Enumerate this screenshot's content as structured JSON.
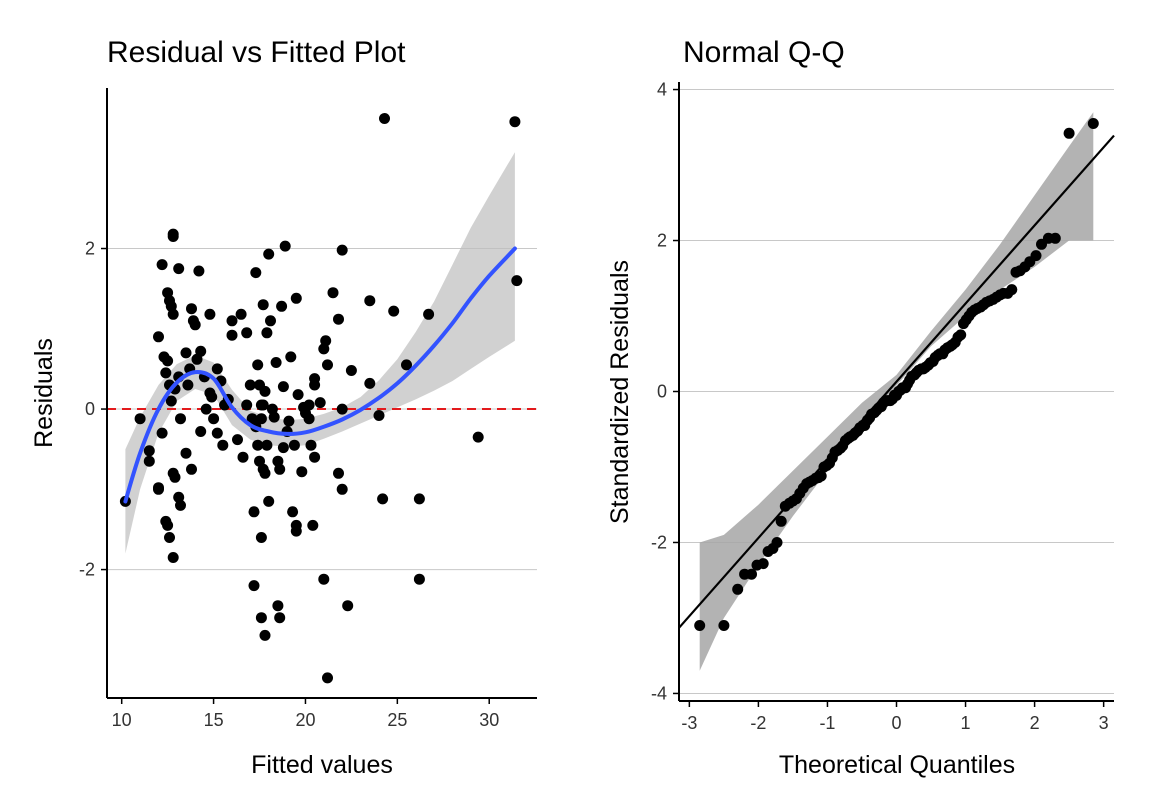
{
  "chart_data": [
    {
      "type": "scatter",
      "title": "Residual vs Fitted Plot",
      "xlabel": "Fitted values",
      "ylabel": "Residuals",
      "xlim": [
        9.2,
        32.6
      ],
      "ylim": [
        -3.6,
        4.0
      ],
      "xticks": [
        "10",
        "15",
        "20",
        "25",
        "30"
      ],
      "yticks": [
        "-2",
        "0",
        "2"
      ],
      "grid": "horizontal major lines",
      "reference_line": {
        "y": 0,
        "color": "#e31a1c",
        "style": "dashed"
      },
      "points_color": "#000000",
      "smooth_color": "#3353ff",
      "smooth": {
        "x": [
          10.2,
          11.0,
          12.0,
          13.0,
          14.0,
          15.0,
          16.0,
          17.0,
          18.0,
          19.0,
          20.0,
          21.0,
          22.0,
          23.0,
          24.0,
          25.0,
          26.0,
          27.0,
          28.0,
          29.0,
          30.0,
          31.4
        ],
        "y": [
          -1.15,
          -0.55,
          0.0,
          0.33,
          0.46,
          0.38,
          0.02,
          -0.2,
          -0.28,
          -0.31,
          -0.29,
          -0.22,
          -0.13,
          -0.01,
          0.14,
          0.32,
          0.54,
          0.79,
          1.07,
          1.38,
          1.66,
          2.0
        ],
        "band_lower": [
          -1.8,
          -1.0,
          -0.3,
          0.1,
          0.25,
          0.18,
          -0.2,
          -0.38,
          -0.45,
          -0.47,
          -0.45,
          -0.37,
          -0.28,
          -0.18,
          -0.08,
          0.02,
          0.12,
          0.23,
          0.35,
          0.5,
          0.65,
          0.85
        ],
        "band_upper": [
          -0.5,
          -0.1,
          0.3,
          0.56,
          0.67,
          0.58,
          0.24,
          -0.02,
          -0.1,
          -0.14,
          -0.12,
          -0.06,
          0.02,
          0.15,
          0.36,
          0.62,
          0.96,
          1.34,
          1.8,
          2.26,
          2.66,
          3.2
        ]
      },
      "points": [
        [
          10.2,
          -1.15
        ],
        [
          11.0,
          -0.12
        ],
        [
          11.5,
          -0.52
        ],
        [
          11.5,
          -0.65
        ],
        [
          12.0,
          0.9
        ],
        [
          12.0,
          -0.98
        ],
        [
          12.0,
          -1.0
        ],
        [
          12.2,
          1.8
        ],
        [
          12.2,
          -0.3
        ],
        [
          12.3,
          0.65
        ],
        [
          12.4,
          0.45
        ],
        [
          12.4,
          -1.4
        ],
        [
          12.5,
          1.45
        ],
        [
          12.5,
          0.6
        ],
        [
          12.5,
          -1.45
        ],
        [
          12.6,
          1.35
        ],
        [
          12.6,
          0.3
        ],
        [
          12.6,
          -1.6
        ],
        [
          12.7,
          1.28
        ],
        [
          12.7,
          0.1
        ],
        [
          12.8,
          2.18
        ],
        [
          12.8,
          2.15
        ],
        [
          12.8,
          1.18
        ],
        [
          12.8,
          -0.8
        ],
        [
          12.8,
          -1.85
        ],
        [
          12.9,
          0.25
        ],
        [
          12.9,
          -0.85
        ],
        [
          13.1,
          1.75
        ],
        [
          13.1,
          0.4
        ],
        [
          13.1,
          -1.1
        ],
        [
          13.2,
          -1.2
        ],
        [
          13.2,
          -0.12
        ],
        [
          13.5,
          0.7
        ],
        [
          13.5,
          -0.55
        ],
        [
          13.6,
          0.3
        ],
        [
          13.7,
          0.5
        ],
        [
          13.8,
          1.25
        ],
        [
          13.8,
          -0.75
        ],
        [
          13.9,
          1.1
        ],
        [
          14.0,
          1.05
        ],
        [
          14.1,
          0.62
        ],
        [
          14.2,
          1.72
        ],
        [
          14.3,
          0.72
        ],
        [
          14.3,
          -0.28
        ],
        [
          14.5,
          0.4
        ],
        [
          14.6,
          0.0
        ],
        [
          14.8,
          1.18
        ],
        [
          14.8,
          0.2
        ],
        [
          14.9,
          0.15
        ],
        [
          15.0,
          -0.12
        ],
        [
          15.2,
          0.5
        ],
        [
          15.2,
          -0.3
        ],
        [
          15.4,
          0.35
        ],
        [
          15.5,
          -0.45
        ],
        [
          15.6,
          0.05
        ],
        [
          15.8,
          0.12
        ],
        [
          16.0,
          1.1
        ],
        [
          16.0,
          0.92
        ],
        [
          16.3,
          -0.38
        ],
        [
          16.5,
          1.18
        ],
        [
          16.6,
          -0.6
        ],
        [
          16.8,
          0.05
        ],
        [
          16.8,
          0.95
        ],
        [
          17.0,
          0.3
        ],
        [
          17.1,
          -0.12
        ],
        [
          17.2,
          -2.2
        ],
        [
          17.2,
          -1.28
        ],
        [
          17.3,
          -0.22
        ],
        [
          17.3,
          1.7
        ],
        [
          17.4,
          0.55
        ],
        [
          17.4,
          -0.45
        ],
        [
          17.5,
          0.3
        ],
        [
          17.5,
          -0.65
        ],
        [
          17.6,
          0.05
        ],
        [
          17.6,
          -0.12
        ],
        [
          17.6,
          -1.6
        ],
        [
          17.6,
          -2.6
        ],
        [
          17.7,
          0.05
        ],
        [
          17.7,
          -0.75
        ],
        [
          17.7,
          1.3
        ],
        [
          17.8,
          -0.8
        ],
        [
          17.8,
          -2.82
        ],
        [
          17.8,
          0.22
        ],
        [
          17.9,
          0.95
        ],
        [
          17.9,
          -0.45
        ],
        [
          18.0,
          1.93
        ],
        [
          18.0,
          -1.15
        ],
        [
          18.1,
          1.1
        ],
        [
          18.2,
          0.0
        ],
        [
          18.3,
          -0.1
        ],
        [
          18.4,
          0.58
        ],
        [
          18.5,
          -2.45
        ],
        [
          18.5,
          -0.65
        ],
        [
          18.6,
          -0.75
        ],
        [
          18.6,
          -2.6
        ],
        [
          18.7,
          1.28
        ],
        [
          18.8,
          0.28
        ],
        [
          18.8,
          -0.48
        ],
        [
          18.9,
          2.03
        ],
        [
          19.0,
          -0.28
        ],
        [
          19.1,
          -0.15
        ],
        [
          19.2,
          0.65
        ],
        [
          19.3,
          -1.28
        ],
        [
          19.4,
          -0.45
        ],
        [
          19.5,
          1.38
        ],
        [
          19.5,
          -1.52
        ],
        [
          19.5,
          -1.45
        ],
        [
          19.6,
          0.18
        ],
        [
          19.8,
          -0.78
        ],
        [
          19.9,
          0.02
        ],
        [
          20.0,
          -0.05
        ],
        [
          20.2,
          -0.12
        ],
        [
          20.2,
          0.05
        ],
        [
          20.3,
          -0.45
        ],
        [
          20.4,
          -1.45
        ],
        [
          20.5,
          0.38
        ],
        [
          20.5,
          0.3
        ],
        [
          20.5,
          -0.6
        ],
        [
          20.8,
          0.08
        ],
        [
          21.0,
          -2.12
        ],
        [
          21.0,
          0.75
        ],
        [
          21.1,
          0.85
        ],
        [
          21.2,
          0.55
        ],
        [
          21.2,
          -3.35
        ],
        [
          21.5,
          1.45
        ],
        [
          21.8,
          -0.8
        ],
        [
          21.8,
          1.12
        ],
        [
          22.0,
          1.98
        ],
        [
          22.0,
          -1.0
        ],
        [
          22.0,
          0.0
        ],
        [
          22.3,
          -2.45
        ],
        [
          22.5,
          0.48
        ],
        [
          23.5,
          1.35
        ],
        [
          23.5,
          0.32
        ],
        [
          24.0,
          -0.08
        ],
        [
          24.2,
          -1.12
        ],
        [
          24.3,
          3.62
        ],
        [
          24.8,
          1.22
        ],
        [
          25.5,
          0.55
        ],
        [
          26.2,
          -1.12
        ],
        [
          26.2,
          -2.12
        ],
        [
          26.7,
          1.18
        ],
        [
          29.4,
          -0.35
        ],
        [
          31.4,
          3.58
        ],
        [
          31.5,
          1.6
        ]
      ]
    },
    {
      "type": "scatter",
      "title": "Normal Q-Q",
      "xlabel": "Theoretical Quantiles",
      "ylabel": "Standardized Residuals",
      "xlim": [
        -3.15,
        3.15
      ],
      "ylim": [
        -4.1,
        4.1
      ],
      "xticks": [
        "-3",
        "-2",
        "-1",
        "0",
        "1",
        "2",
        "3"
      ],
      "yticks": [
        "-4",
        "-2",
        "0",
        "2",
        "4"
      ],
      "grid": "horizontal major lines",
      "reference_line": {
        "slope": 1.035,
        "intercept": 0.13,
        "color": "#000000",
        "style": "solid"
      },
      "band": {
        "x": [
          -2.85,
          -2.5,
          -2.0,
          -1.5,
          -1.0,
          -0.5,
          0.0,
          0.5,
          1.0,
          1.5,
          2.0,
          2.5,
          2.85
        ],
        "lower": [
          -3.7,
          -3.0,
          -2.3,
          -1.65,
          -1.05,
          -0.45,
          0.08,
          0.6,
          1.0,
          1.35,
          1.65,
          2.0,
          2.0
        ],
        "upper": [
          -2.0,
          -1.9,
          -1.5,
          -1.05,
          -0.6,
          -0.15,
          0.22,
          0.8,
          1.35,
          1.95,
          2.6,
          3.25,
          3.7
        ]
      },
      "points": [
        [
          -2.85,
          -3.1
        ],
        [
          -2.5,
          -3.1
        ],
        [
          -2.3,
          -2.62
        ],
        [
          -2.2,
          -2.42
        ],
        [
          -2.1,
          -2.42
        ],
        [
          -2.02,
          -2.3
        ],
        [
          -1.93,
          -2.28
        ],
        [
          -1.86,
          -2.12
        ],
        [
          -1.79,
          -2.08
        ],
        [
          -1.73,
          -2.0
        ],
        [
          -1.67,
          -1.72
        ],
        [
          -1.61,
          -1.52
        ],
        [
          -1.55,
          -1.48
        ],
        [
          -1.5,
          -1.45
        ],
        [
          -1.45,
          -1.42
        ],
        [
          -1.4,
          -1.35
        ],
        [
          -1.35,
          -1.28
        ],
        [
          -1.3,
          -1.22
        ],
        [
          -1.26,
          -1.2
        ],
        [
          -1.22,
          -1.18
        ],
        [
          -1.17,
          -1.15
        ],
        [
          -1.13,
          -1.14
        ],
        [
          -1.09,
          -1.12
        ],
        [
          -1.05,
          -1.0
        ],
        [
          -1.01,
          -0.98
        ],
        [
          -0.97,
          -0.95
        ],
        [
          -0.93,
          -0.88
        ],
        [
          -0.89,
          -0.8
        ],
        [
          -0.85,
          -0.78
        ],
        [
          -0.81,
          -0.75
        ],
        [
          -0.78,
          -0.72
        ],
        [
          -0.74,
          -0.65
        ],
        [
          -0.7,
          -0.62
        ],
        [
          -0.67,
          -0.6
        ],
        [
          -0.63,
          -0.58
        ],
        [
          -0.6,
          -0.55
        ],
        [
          -0.56,
          -0.52
        ],
        [
          -0.53,
          -0.48
        ],
        [
          -0.49,
          -0.45
        ],
        [
          -0.46,
          -0.45
        ],
        [
          -0.42,
          -0.38
        ],
        [
          -0.39,
          -0.35
        ],
        [
          -0.36,
          -0.3
        ],
        [
          -0.32,
          -0.28
        ],
        [
          -0.29,
          -0.25
        ],
        [
          -0.26,
          -0.22
        ],
        [
          -0.22,
          -0.2
        ],
        [
          -0.19,
          -0.15
        ],
        [
          -0.16,
          -0.12
        ],
        [
          -0.13,
          -0.12
        ],
        [
          -0.09,
          -0.12
        ],
        [
          -0.06,
          -0.1
        ],
        [
          -0.03,
          -0.05
        ],
        [
          0.0,
          -0.05
        ],
        [
          0.03,
          0.0
        ],
        [
          0.06,
          0.02
        ],
        [
          0.09,
          0.05
        ],
        [
          0.13,
          0.05
        ],
        [
          0.16,
          0.1
        ],
        [
          0.19,
          0.15
        ],
        [
          0.22,
          0.2
        ],
        [
          0.26,
          0.22
        ],
        [
          0.29,
          0.25
        ],
        [
          0.32,
          0.28
        ],
        [
          0.36,
          0.3
        ],
        [
          0.39,
          0.3
        ],
        [
          0.42,
          0.32
        ],
        [
          0.46,
          0.35
        ],
        [
          0.49,
          0.38
        ],
        [
          0.53,
          0.4
        ],
        [
          0.56,
          0.45
        ],
        [
          0.6,
          0.48
        ],
        [
          0.63,
          0.5
        ],
        [
          0.67,
          0.5
        ],
        [
          0.7,
          0.55
        ],
        [
          0.74,
          0.58
        ],
        [
          0.78,
          0.6
        ],
        [
          0.81,
          0.62
        ],
        [
          0.85,
          0.65
        ],
        [
          0.89,
          0.72
        ],
        [
          0.93,
          0.75
        ],
        [
          0.97,
          0.9
        ],
        [
          1.01,
          0.95
        ],
        [
          1.05,
          1.0
        ],
        [
          1.09,
          1.05
        ],
        [
          1.13,
          1.08
        ],
        [
          1.17,
          1.1
        ],
        [
          1.22,
          1.12
        ],
        [
          1.26,
          1.15
        ],
        [
          1.3,
          1.18
        ],
        [
          1.35,
          1.2
        ],
        [
          1.4,
          1.22
        ],
        [
          1.45,
          1.25
        ],
        [
          1.5,
          1.28
        ],
        [
          1.55,
          1.3
        ],
        [
          1.61,
          1.3
        ],
        [
          1.67,
          1.35
        ],
        [
          1.73,
          1.58
        ],
        [
          1.79,
          1.6
        ],
        [
          1.86,
          1.65
        ],
        [
          1.93,
          1.72
        ],
        [
          2.02,
          1.8
        ],
        [
          2.1,
          1.95
        ],
        [
          2.2,
          2.03
        ],
        [
          2.3,
          2.03
        ],
        [
          2.5,
          3.42
        ],
        [
          2.85,
          3.55
        ]
      ]
    }
  ]
}
